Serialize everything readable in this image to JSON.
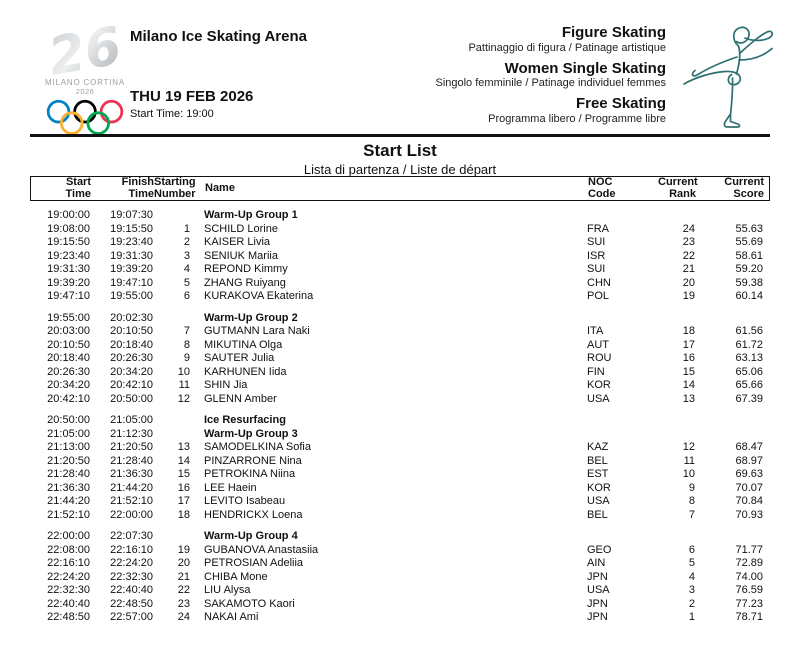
{
  "logo": {
    "year_mark": "26",
    "wordmark": "MILANO CORTINA",
    "year": "2026",
    "ring_colors": [
      "#0081C8",
      "#000000",
      "#EE334E",
      "#FCB131",
      "#00A651"
    ]
  },
  "header": {
    "venue": "Milano Ice Skating Arena",
    "date": "THU 19 FEB 2026",
    "start_time": "Start Time: 19:00",
    "discipline": "Figure Skating",
    "discipline_sub": "Pattinaggio di figura / Patinage artistique",
    "event": "Women Single Skating",
    "event_sub": "Singolo femminile / Patinage individuel femmes",
    "segment": "Free Skating",
    "segment_sub": "Programma libero / Programme libre",
    "skater_icon_color": "#2e6f72"
  },
  "title": {
    "main": "Start List",
    "sub": "Lista di partenza / Liste de départ"
  },
  "table": {
    "headers": {
      "start": [
        "Start",
        "Time"
      ],
      "finish": [
        "Finish",
        "Time"
      ],
      "number": [
        "Starting",
        "Number"
      ],
      "name": "Name",
      "noc": [
        "NOC",
        "Code"
      ],
      "rank": [
        "Current",
        "Rank"
      ],
      "score": [
        "Current",
        "Score"
      ]
    },
    "rows": [
      {
        "type": "group",
        "start": "19:00:00",
        "finish": "19:07:30",
        "name": "Warm-Up Group 1"
      },
      {
        "type": "skater",
        "start": "19:08:00",
        "finish": "19:15:50",
        "number": "1",
        "name": "SCHILD Lorine",
        "noc": "FRA",
        "rank": "24",
        "score": "55.63"
      },
      {
        "type": "skater",
        "start": "19:15:50",
        "finish": "19:23:40",
        "number": "2",
        "name": "KAISER Livia",
        "noc": "SUI",
        "rank": "23",
        "score": "55.69"
      },
      {
        "type": "skater",
        "start": "19:23:40",
        "finish": "19:31:30",
        "number": "3",
        "name": "SENIUK Mariia",
        "noc": "ISR",
        "rank": "22",
        "score": "58.61"
      },
      {
        "type": "skater",
        "start": "19:31:30",
        "finish": "19:39:20",
        "number": "4",
        "name": "REPOND Kimmy",
        "noc": "SUI",
        "rank": "21",
        "score": "59.20"
      },
      {
        "type": "skater",
        "start": "19:39:20",
        "finish": "19:47:10",
        "number": "5",
        "name": "ZHANG Ruiyang",
        "noc": "CHN",
        "rank": "20",
        "score": "59.38"
      },
      {
        "type": "skater",
        "start": "19:47:10",
        "finish": "19:55:00",
        "number": "6",
        "name": "KURAKOVA Ekaterina",
        "noc": "POL",
        "rank": "19",
        "score": "60.14"
      },
      {
        "type": "group",
        "gap": true,
        "start": "19:55:00",
        "finish": "20:02:30",
        "name": "Warm-Up Group 2"
      },
      {
        "type": "skater",
        "start": "20:03:00",
        "finish": "20:10:50",
        "number": "7",
        "name": "GUTMANN Lara Naki",
        "noc": "ITA",
        "rank": "18",
        "score": "61.56"
      },
      {
        "type": "skater",
        "start": "20:10:50",
        "finish": "20:18:40",
        "number": "8",
        "name": "MIKUTINA Olga",
        "noc": "AUT",
        "rank": "17",
        "score": "61.72"
      },
      {
        "type": "skater",
        "start": "20:18:40",
        "finish": "20:26:30",
        "number": "9",
        "name": "SAUTER Julia",
        "noc": "ROU",
        "rank": "16",
        "score": "63.13"
      },
      {
        "type": "skater",
        "start": "20:26:30",
        "finish": "20:34:20",
        "number": "10",
        "name": "KARHUNEN Iida",
        "noc": "FIN",
        "rank": "15",
        "score": "65.06"
      },
      {
        "type": "skater",
        "start": "20:34:20",
        "finish": "20:42:10",
        "number": "11",
        "name": "SHIN Jia",
        "noc": "KOR",
        "rank": "14",
        "score": "65.66"
      },
      {
        "type": "skater",
        "start": "20:42:10",
        "finish": "20:50:00",
        "number": "12",
        "name": "GLENN Amber",
        "noc": "USA",
        "rank": "13",
        "score": "67.39"
      },
      {
        "type": "group",
        "gap": true,
        "start": "20:50:00",
        "finish": "21:05:00",
        "name": "Ice Resurfacing"
      },
      {
        "type": "group",
        "start": "21:05:00",
        "finish": "21:12:30",
        "name": "Warm-Up Group 3"
      },
      {
        "type": "skater",
        "start": "21:13:00",
        "finish": "21:20:50",
        "number": "13",
        "name": "SAMODELKINA Sofia",
        "noc": "KAZ",
        "rank": "12",
        "score": "68.47"
      },
      {
        "type": "skater",
        "start": "21:20:50",
        "finish": "21:28:40",
        "number": "14",
        "name": "PINZARRONE Nina",
        "noc": "BEL",
        "rank": "11",
        "score": "68.97"
      },
      {
        "type": "skater",
        "start": "21:28:40",
        "finish": "21:36:30",
        "number": "15",
        "name": "PETROKINA Niina",
        "noc": "EST",
        "rank": "10",
        "score": "69.63"
      },
      {
        "type": "skater",
        "start": "21:36:30",
        "finish": "21:44:20",
        "number": "16",
        "name": "LEE Haein",
        "noc": "KOR",
        "rank": "9",
        "score": "70.07"
      },
      {
        "type": "skater",
        "start": "21:44:20",
        "finish": "21:52:10",
        "number": "17",
        "name": "LEVITO Isabeau",
        "noc": "USA",
        "rank": "8",
        "score": "70.84"
      },
      {
        "type": "skater",
        "start": "21:52:10",
        "finish": "22:00:00",
        "number": "18",
        "name": "HENDRICKX Loena",
        "noc": "BEL",
        "rank": "7",
        "score": "70.93"
      },
      {
        "type": "group",
        "gap": true,
        "start": "22:00:00",
        "finish": "22:07:30",
        "name": "Warm-Up Group 4"
      },
      {
        "type": "skater",
        "start": "22:08:00",
        "finish": "22:16:10",
        "number": "19",
        "name": "GUBANOVA Anastasiia",
        "noc": "GEO",
        "rank": "6",
        "score": "71.77"
      },
      {
        "type": "skater",
        "start": "22:16:10",
        "finish": "22:24:20",
        "number": "20",
        "name": "PETROSIAN Adeliia",
        "noc": "AIN",
        "rank": "5",
        "score": "72.89"
      },
      {
        "type": "skater",
        "start": "22:24:20",
        "finish": "22:32:30",
        "number": "21",
        "name": "CHIBA Mone",
        "noc": "JPN",
        "rank": "4",
        "score": "74.00"
      },
      {
        "type": "skater",
        "start": "22:32:30",
        "finish": "22:40:40",
        "number": "22",
        "name": "LIU Alysa",
        "noc": "USA",
        "rank": "3",
        "score": "76.59"
      },
      {
        "type": "skater",
        "start": "22:40:40",
        "finish": "22:48:50",
        "number": "23",
        "name": "SAKAMOTO Kaori",
        "noc": "JPN",
        "rank": "2",
        "score": "77.23"
      },
      {
        "type": "skater",
        "start": "22:48:50",
        "finish": "22:57:00",
        "number": "24",
        "name": "NAKAI Ami",
        "noc": "JPN",
        "rank": "1",
        "score": "78.71"
      }
    ]
  }
}
